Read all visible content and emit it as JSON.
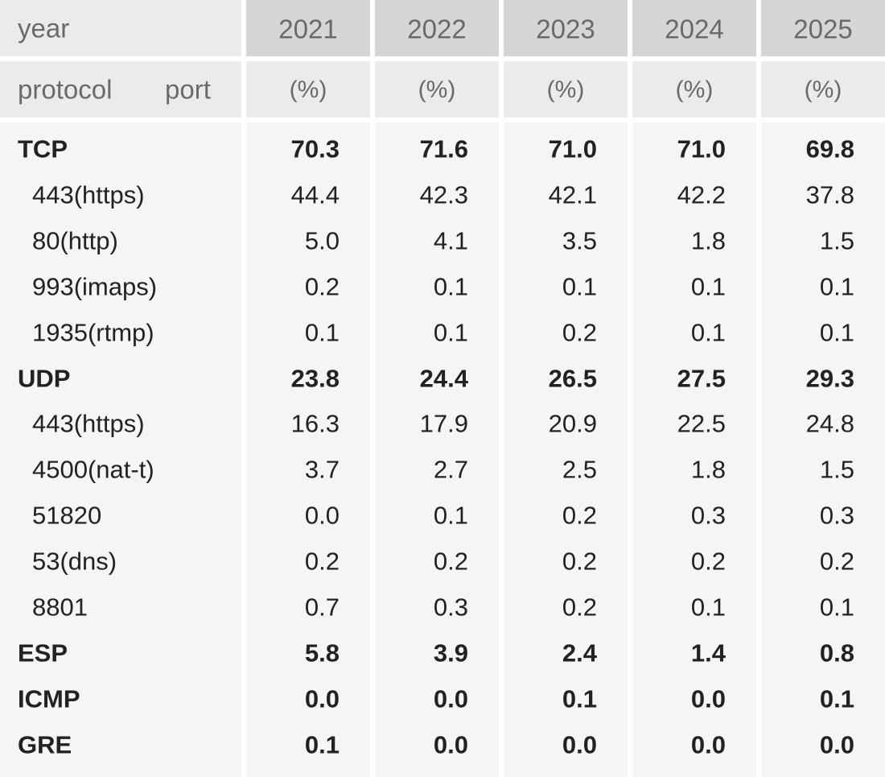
{
  "header": {
    "year_label": "year",
    "protocol_label": "protocol",
    "port_label": "port",
    "years": [
      "2021",
      "2022",
      "2023",
      "2024",
      "2025"
    ],
    "units": [
      "(%)",
      "(%)",
      "(%)",
      "(%)",
      "(%)"
    ]
  },
  "groups": [
    {
      "protocol": "TCP",
      "values": [
        "70.3",
        "71.6",
        "71.0",
        "71.0",
        "69.8"
      ],
      "ports": [
        {
          "port": "443(https)",
          "values": [
            "44.4",
            "42.3",
            "42.1",
            "42.2",
            "37.8"
          ]
        },
        {
          "port": "80(http)",
          "values": [
            "5.0",
            "4.1",
            "3.5",
            "1.8",
            "1.5"
          ]
        },
        {
          "port": "993(imaps)",
          "values": [
            "0.2",
            "0.1",
            "0.1",
            "0.1",
            "0.1"
          ]
        },
        {
          "port": "1935(rtmp)",
          "values": [
            "0.1",
            "0.1",
            "0.2",
            "0.1",
            "0.1"
          ]
        }
      ]
    },
    {
      "protocol": "UDP",
      "values": [
        "23.8",
        "24.4",
        "26.5",
        "27.5",
        "29.3"
      ],
      "ports": [
        {
          "port": "443(https)",
          "values": [
            "16.3",
            "17.9",
            "20.9",
            "22.5",
            "24.8"
          ]
        },
        {
          "port": "4500(nat-t)",
          "values": [
            "3.7",
            "2.7",
            "2.5",
            "1.8",
            "1.5"
          ]
        },
        {
          "port": "51820",
          "values": [
            "0.0",
            "0.1",
            "0.2",
            "0.3",
            "0.3"
          ]
        },
        {
          "port": "53(dns)",
          "values": [
            "0.2",
            "0.2",
            "0.2",
            "0.2",
            "0.2"
          ]
        },
        {
          "port": "8801",
          "values": [
            "0.7",
            "0.3",
            "0.2",
            "0.1",
            "0.1"
          ]
        }
      ]
    },
    {
      "protocol": "ESP",
      "values": [
        "5.8",
        "3.9",
        "2.4",
        "1.4",
        "0.8"
      ],
      "ports": []
    },
    {
      "protocol": "ICMP",
      "values": [
        "0.0",
        "0.0",
        "0.1",
        "0.0",
        "0.1"
      ],
      "ports": []
    },
    {
      "protocol": "GRE",
      "values": [
        "0.1",
        "0.0",
        "0.0",
        "0.0",
        "0.0"
      ],
      "ports": []
    }
  ]
}
